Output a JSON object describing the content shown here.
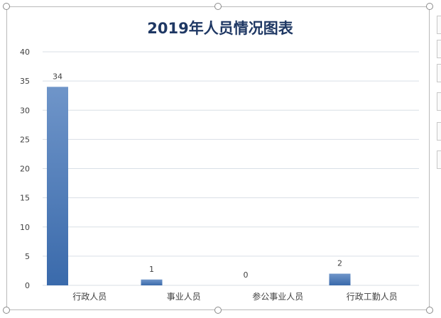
{
  "chart_data": {
    "type": "bar",
    "title": "2019年人员情况图表",
    "categories": [
      "行政人员",
      "事业人员",
      "参公事业人员",
      "行政工勤人员"
    ],
    "values": [
      34,
      1,
      0,
      2
    ],
    "data_labels": [
      "34",
      "1",
      "0",
      "2"
    ],
    "ylim": [
      0,
      40
    ],
    "yticks": [
      "0",
      "5",
      "10",
      "15",
      "20",
      "25",
      "30",
      "35",
      "40"
    ],
    "xlabel": "",
    "ylabel": "",
    "grid": true,
    "legend": "none"
  },
  "colors": {
    "bar_top": "#6f95c9",
    "bar_bottom": "#3a6aab",
    "title": "#1f3864",
    "grid": "#d9dfe6",
    "axis_text": "#404040"
  },
  "icons": [
    "resize-handle-icon",
    "chart-elements-button",
    "chart-styles-button",
    "chart-filters-button"
  ]
}
